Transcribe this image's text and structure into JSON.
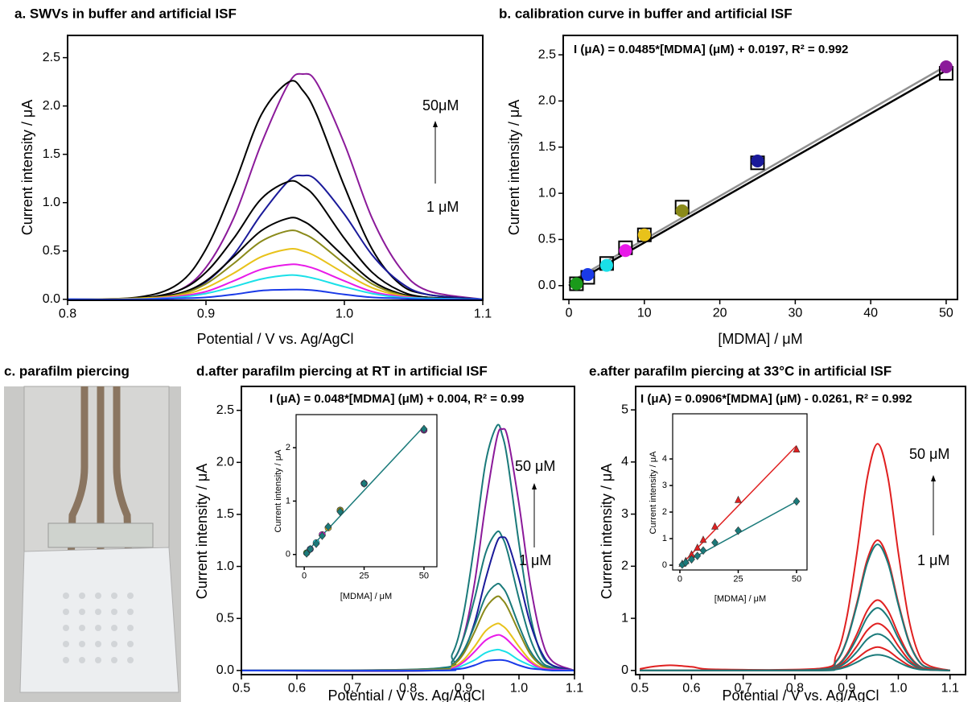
{
  "chart_data": [
    {
      "type": "line",
      "title": "a. SWVs in buffer and artificial ISF",
      "xlabel": "Potential / V vs. Ag/AgCl",
      "ylabel": "Current intensity / μA",
      "xlim": [
        0.8,
        1.1
      ],
      "ylim": [
        -0.01,
        2.73
      ],
      "xticks": [
        0.8,
        0.9,
        {
          "value": 1,
          "label": "1.0"
        },
        1.1
      ],
      "yticks": [
        {
          "value": 0,
          "label": "0.0"
        },
        0.5,
        {
          "value": 1,
          "label": "1.0"
        },
        1.5,
        {
          "value": 2,
          "label": "2.0"
        },
        2.5
      ],
      "annotations": [
        {
          "text": "50μM",
          "color": "#000000"
        },
        {
          "text": "1 μM",
          "color": "#000000"
        }
      ],
      "x": [
        0.8,
        0.85,
        0.88,
        0.9,
        0.92,
        0.94,
        0.96,
        0.97,
        0.98,
        1.0,
        1.02,
        1.04,
        1.06,
        1.1
      ],
      "series": [
        {
          "color": "#8b1a9a",
          "values": [
            0,
            0,
            0.09,
            0.33,
            0.84,
            1.61,
            2.24,
            2.33,
            2.24,
            1.61,
            0.84,
            0.33,
            0.09,
            0
          ]
        },
        {
          "color": "#000000",
          "values": [
            0,
            0.02,
            0.16,
            0.52,
            1.17,
            1.91,
            2.25,
            2.16,
            1.91,
            1.17,
            0.52,
            0.16,
            0.05,
            0
          ]
        },
        {
          "color": "#1a1a9a",
          "values": [
            0,
            0,
            0.05,
            0.18,
            0.46,
            0.88,
            1.23,
            1.28,
            1.23,
            0.88,
            0.46,
            0.18,
            0.05,
            0
          ]
        },
        {
          "color": "#000000",
          "values": [
            0,
            0.01,
            0.09,
            0.28,
            0.63,
            1.04,
            1.22,
            1.17,
            1.04,
            0.63,
            0.28,
            0.09,
            0.02,
            0
          ]
        },
        {
          "color": "#000000",
          "values": [
            0,
            0.01,
            0.06,
            0.19,
            0.44,
            0.71,
            0.84,
            0.81,
            0.71,
            0.44,
            0.19,
            0.06,
            0.02,
            0
          ]
        },
        {
          "color": "#8a8a1a",
          "values": [
            0,
            0.01,
            0.05,
            0.16,
            0.37,
            0.6,
            0.71,
            0.68,
            0.6,
            0.37,
            0.16,
            0.05,
            0.01,
            0
          ]
        },
        {
          "color": "#e8c21a",
          "values": [
            0,
            0.01,
            0.04,
            0.12,
            0.27,
            0.44,
            0.52,
            0.5,
            0.44,
            0.27,
            0.12,
            0.04,
            0.01,
            0
          ]
        },
        {
          "color": "#e81ae8",
          "values": [
            0,
            0,
            0.03,
            0.08,
            0.19,
            0.31,
            0.36,
            0.35,
            0.31,
            0.19,
            0.08,
            0.03,
            0.01,
            0
          ]
        },
        {
          "color": "#1ae0e8",
          "values": [
            0,
            0,
            0.02,
            0.06,
            0.13,
            0.21,
            0.25,
            0.24,
            0.21,
            0.13,
            0.06,
            0.02,
            0.01,
            0
          ]
        },
        {
          "color": "#1a3ae8",
          "values": [
            0,
            0,
            0.01,
            0.02,
            0.05,
            0.09,
            0.1,
            0.1,
            0.09,
            0.05,
            0.02,
            0.01,
            0,
            0
          ]
        }
      ]
    },
    {
      "type": "scatter",
      "title": "b. calibration curve in buffer and artificial ISF",
      "equation": "I (μA) = 0.0485*[MDMA] (μM) + 0.0197, R² = 0.992",
      "equation_color": "#707070",
      "xlabel": "[MDMA] / μM",
      "ylabel": "Current intensity / μA",
      "xlim": [
        -0.75,
        51.5
      ],
      "ylim": [
        -0.15,
        2.71
      ],
      "xticks": [
        0,
        10,
        20,
        30,
        40,
        50
      ],
      "yticks": [
        {
          "value": 0,
          "label": "0.0"
        },
        0.5,
        {
          "value": 1,
          "label": "1.0"
        },
        1.5,
        {
          "value": 2,
          "label": "2.0"
        },
        2.5
      ],
      "x": [
        1,
        2.5,
        5,
        7.5,
        10,
        15,
        25,
        50
      ],
      "series": [
        {
          "marker": "open-square",
          "color": "#000000",
          "values": [
            0.02,
            0.09,
            0.24,
            0.41,
            0.55,
            0.85,
            1.33,
            2.3
          ]
        },
        {
          "marker": "circle",
          "colors": [
            "#1a9a1a",
            "#1a3ae8",
            "#1ae0e8",
            "#e81ae8",
            "#e8c21a",
            "#8a8a1a",
            "#1a1a9a",
            "#8b1a9a"
          ],
          "values": [
            0.02,
            0.12,
            0.22,
            0.38,
            0.55,
            0.81,
            1.35,
            2.37
          ]
        }
      ],
      "fits": [
        {
          "color": "#000000",
          "x": [
            0,
            50
          ],
          "values": [
            0.0,
            2.33
          ]
        },
        {
          "color": "#909090",
          "x": [
            0,
            50
          ],
          "values": [
            0.03,
            2.38
          ]
        }
      ]
    },
    {
      "type": "line",
      "title": "d.after parafilm piercing at RT in artificial ISF",
      "equation": "I (μA) = 0.048*[MDMA] (μM) + 0.004, R² = 0.99",
      "equation_color": "#1a7a7a",
      "xlabel": "Potential / V vs. Ag/AgCl",
      "ylabel": "Current intensity / μA",
      "xlim": [
        0.5,
        1.1
      ],
      "ylim": [
        -0.04,
        2.73
      ],
      "xticks": [
        0.5,
        0.6,
        0.7,
        0.8,
        0.9,
        {
          "value": 1,
          "label": "1.0"
        },
        1.1
      ],
      "yticks": [
        {
          "value": 0,
          "label": "0.0"
        },
        0.5,
        {
          "value": 1,
          "label": "1.0"
        },
        1.5,
        {
          "value": 2,
          "label": "2.0"
        },
        2.5
      ],
      "annotations": [
        {
          "text": "50 μM",
          "color": "#8b1a9a"
        },
        {
          "text": "1 μM",
          "color": "#1a9a1a"
        }
      ],
      "x": [
        0.5,
        0.85,
        0.88,
        0.9,
        0.92,
        0.94,
        0.96,
        0.97,
        0.98,
        1.0,
        1.02,
        1.04,
        1.06,
        1.1
      ],
      "series": [
        {
          "color": "#1a7a7a",
          "values": [
            0,
            0.02,
            0.16,
            0.54,
            1.22,
            2.0,
            2.35,
            2.26,
            2.0,
            1.22,
            0.54,
            0.16,
            0.05,
            0
          ]
        },
        {
          "color": "#8b1a9a",
          "values": [
            0,
            0,
            0.09,
            0.32,
            0.84,
            1.6,
            2.23,
            2.32,
            2.23,
            1.6,
            0.84,
            0.32,
            0.09,
            0
          ]
        },
        {
          "color": "#1a7a7a",
          "values": [
            0,
            0.01,
            0.09,
            0.31,
            0.69,
            1.13,
            1.33,
            1.28,
            1.13,
            0.69,
            0.31,
            0.09,
            0.03,
            0
          ]
        },
        {
          "color": "#1a1a9a",
          "values": [
            0,
            0,
            0.05,
            0.18,
            0.46,
            0.88,
            1.23,
            1.28,
            1.23,
            0.88,
            0.46,
            0.18,
            0.05,
            0
          ]
        },
        {
          "color": "#1a7a7a",
          "values": [
            0,
            0.01,
            0.06,
            0.19,
            0.43,
            0.71,
            0.83,
            0.8,
            0.71,
            0.43,
            0.19,
            0.06,
            0.02,
            0
          ]
        },
        {
          "color": "#8a8a1a",
          "values": [
            0,
            0.01,
            0.05,
            0.16,
            0.37,
            0.6,
            0.71,
            0.68,
            0.6,
            0.37,
            0.16,
            0.05,
            0.01,
            0
          ]
        },
        {
          "color": "#e8c21a",
          "values": [
            0,
            0,
            0.03,
            0.1,
            0.23,
            0.38,
            0.45,
            0.43,
            0.38,
            0.23,
            0.1,
            0.03,
            0.01,
            0
          ]
        },
        {
          "color": "#e81ae8",
          "values": [
            0,
            0,
            0.02,
            0.08,
            0.18,
            0.29,
            0.34,
            0.33,
            0.29,
            0.18,
            0.08,
            0.02,
            0.01,
            0
          ]
        },
        {
          "color": "#1ae0e8",
          "values": [
            0,
            0,
            0.01,
            0.05,
            0.1,
            0.17,
            0.2,
            0.19,
            0.17,
            0.1,
            0.05,
            0.01,
            0,
            0
          ]
        },
        {
          "color": "#1a3ae8",
          "values": [
            0,
            0,
            0.01,
            0.02,
            0.05,
            0.09,
            0.1,
            0.1,
            0.09,
            0.05,
            0.02,
            0.01,
            0,
            0
          ]
        }
      ],
      "inset": {
        "type": "scatter",
        "xlabel": "[MDMA] / μM",
        "ylabel": "Current intensity / μA",
        "xlim": [
          -3.4,
          55.4
        ],
        "ylim": [
          -0.23,
          2.62
        ],
        "xticks": [
          0,
          25,
          50
        ],
        "yticks": [
          0,
          1,
          2
        ],
        "x": [
          1,
          2.5,
          5,
          7.5,
          10,
          15,
          25,
          50
        ],
        "series": [
          {
            "marker": "circle",
            "colors": [
              "#1a9a1a",
              "#1a3ae8",
              "#1ae0e8",
              "#e81ae8",
              "#e8c21a",
              "#8a8a1a",
              "#1a1a9a",
              "#8b1a9a"
            ],
            "values": [
              0.03,
              0.1,
              0.22,
              0.37,
              0.5,
              0.83,
              1.33,
              2.33
            ]
          },
          {
            "marker": "diamond",
            "color": "#1a7a7a",
            "values": [
              0.02,
              0.1,
              0.2,
              0.35,
              0.52,
              0.8,
              1.33,
              2.35
            ]
          }
        ],
        "fits": [
          {
            "color": "#1a7a7a",
            "x": [
              0,
              50
            ],
            "values": [
              0,
              2.4
            ]
          }
        ]
      }
    },
    {
      "type": "line",
      "title": "e.after parafilm piercing at 33°C in artificial ISF",
      "equation": "I (μA) = 0.0906*[MDMA] (μM) - 0.0261, R² = 0.992",
      "equation_color": "#e02020",
      "xlabel": "Potential / V vs. Ag/AgCl",
      "ylabel": "Current intensity / μA",
      "xlim": [
        0.492,
        1.13
      ],
      "ylim": [
        -0.08,
        5.45
      ],
      "xticks": [
        0.5,
        0.6,
        0.7,
        0.8,
        0.9,
        {
          "value": 1,
          "label": "1.0"
        },
        1.1
      ],
      "yticks": [
        0,
        1,
        2,
        3,
        4,
        5
      ],
      "annotations": [
        {
          "text": "50 μM",
          "color": "#000000"
        },
        {
          "text": "1 μM",
          "color": "#000000"
        }
      ],
      "x": [
        0.5,
        0.53,
        0.56,
        0.6,
        0.65,
        0.85,
        0.88,
        0.9,
        0.92,
        0.94,
        0.96,
        0.98,
        1.0,
        1.02,
        1.04,
        1.06,
        1.1
      ],
      "series": [
        {
          "color": "#e02020",
          "values": [
            0.03,
            0.08,
            0.1,
            0.07,
            0.02,
            0.04,
            0.3,
            1.0,
            2.26,
            3.7,
            4.35,
            3.7,
            2.26,
            1.0,
            0.3,
            0.09,
            0
          ]
        },
        {
          "color": "#e02020",
          "values": [
            0,
            0,
            0,
            0,
            0,
            0.03,
            0.18,
            0.58,
            1.3,
            2.13,
            2.5,
            2.13,
            1.3,
            0.58,
            0.18,
            0.05,
            0
          ]
        },
        {
          "color": "#1a7a7a",
          "values": [
            0,
            0,
            0,
            0,
            0,
            0.02,
            0.17,
            0.56,
            1.26,
            2.06,
            2.42,
            2.06,
            1.26,
            0.56,
            0.17,
            0.05,
            0
          ]
        },
        {
          "color": "#e02020",
          "values": [
            0,
            0,
            0,
            0,
            0,
            0.01,
            0.09,
            0.31,
            0.7,
            1.15,
            1.35,
            1.15,
            0.7,
            0.31,
            0.09,
            0.03,
            0
          ]
        },
        {
          "color": "#1a7a7a",
          "values": [
            0,
            0,
            0,
            0,
            0,
            0.01,
            0.08,
            0.28,
            0.62,
            1.02,
            1.2,
            1.02,
            0.62,
            0.28,
            0.08,
            0.02,
            0
          ]
        },
        {
          "color": "#e02020",
          "values": [
            0,
            0,
            0,
            0,
            0,
            0.01,
            0.06,
            0.21,
            0.47,
            0.77,
            0.9,
            0.77,
            0.47,
            0.21,
            0.06,
            0.02,
            0
          ]
        },
        {
          "color": "#1a7a7a",
          "values": [
            0,
            0,
            0,
            0,
            0,
            0.01,
            0.05,
            0.16,
            0.36,
            0.6,
            0.7,
            0.6,
            0.36,
            0.16,
            0.05,
            0.01,
            0
          ]
        },
        {
          "color": "#e02020",
          "values": [
            0,
            0,
            0,
            0,
            0,
            0,
            0.03,
            0.1,
            0.23,
            0.38,
            0.45,
            0.38,
            0.23,
            0.1,
            0.03,
            0.01,
            0
          ]
        },
        {
          "color": "#1a7a7a",
          "values": [
            0,
            0,
            0,
            0,
            0,
            0,
            0.02,
            0.07,
            0.16,
            0.26,
            0.3,
            0.26,
            0.16,
            0.07,
            0.02,
            0.01,
            0
          ]
        }
      ],
      "inset": {
        "type": "scatter",
        "xlabel": "[MDMA] / μM",
        "ylabel": "Current intensity / μA",
        "xlim": [
          -3.1,
          54.5
        ],
        "ylim": [
          -0.18,
          5.7
        ],
        "xticks": [
          0,
          25,
          50
        ],
        "yticks": [
          0,
          1,
          2,
          3,
          4
        ],
        "x": [
          1,
          2.5,
          5,
          7.5,
          10,
          15,
          25,
          50
        ],
        "series": [
          {
            "marker": "triangle",
            "color": "#e02020",
            "values": [
              0.05,
              0.15,
              0.4,
              0.65,
              0.95,
              1.45,
              2.45,
              4.35
            ]
          },
          {
            "marker": "diamond",
            "color": "#1a7a7a",
            "values": [
              0.02,
              0.1,
              0.22,
              0.35,
              0.55,
              0.85,
              1.3,
              2.4
            ]
          }
        ],
        "fits": [
          {
            "color": "#e02020",
            "x": [
              0,
              50
            ],
            "values": [
              -0.03,
              4.5
            ]
          },
          {
            "color": "#1a7a7a",
            "x": [
              0,
              50
            ],
            "values": [
              0,
              2.4
            ]
          }
        ]
      }
    }
  ],
  "photo_panel": {
    "title": "c. parafilm piercing"
  }
}
